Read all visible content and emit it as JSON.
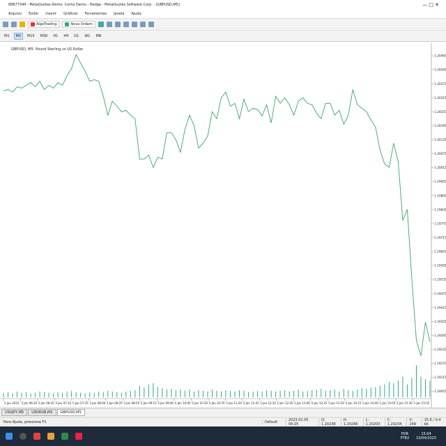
{
  "window": {
    "title": "68677344 - MetaQuotes-Demo: Conta Demo - Hedge - MetaQuotes Software Corp. - [GBPUSD,M5]"
  },
  "menu": [
    "Arquivo",
    "Exibir",
    "Inserir",
    "Gráficos",
    "Ferramentas",
    "Janela",
    "Ajuda"
  ],
  "toolbar": {
    "algotrading": "AlgoTrading",
    "new_order": "Nova Ordem"
  },
  "timeframes": [
    "M1",
    "M5",
    "M15",
    "M30",
    "H1",
    "H4",
    "D1",
    "W1",
    "MN"
  ],
  "chart_data": {
    "type": "line",
    "title": "GBPUSD, M5:  Pound Sterling vs US Dollar",
    "color": "#3aa66a",
    "x_labels": [
      "5 Jan 2023",
      "5 Jan 06:20",
      "5 Jan 06:45",
      "5 Jan 07:10",
      "5 Jan 07:35",
      "5 Jan 08:00",
      "5 Jan 08:25",
      "5 Jan 08:50",
      "5 Jan 09:15",
      "5 Jan 09:40",
      "5 Jan 10:05",
      "5 Jan 10:30",
      "5 Jan 10:55",
      "5 Jan 11:20",
      "5 Jan 11:45",
      "5 Jan 12:10",
      "5 Jan 12:35",
      "5 Jan 13:00",
      "5 Jan 13:25",
      "5 Jan 13:50",
      "5 Jan 14:15",
      "5 Jan 14:40",
      "5 Jan 15:05",
      "5 Jan 15:30",
      "5 Jan 15:55"
    ],
    "values": [
      1.20345,
      1.2035,
      1.20339,
      1.20362,
      1.20356,
      1.20368,
      1.2038,
      1.20362,
      1.20386,
      1.2035,
      1.20368,
      1.20356,
      1.2038,
      1.20368,
      1.2041,
      1.2044,
      1.205,
      1.20464,
      1.20428,
      1.20386,
      1.20392,
      1.20386,
      1.20321,
      1.2024,
      1.203,
      1.20279,
      1.20255,
      1.20261,
      1.2024,
      1.20225,
      1.20052,
      1.20052,
      1.20069,
      1.20016,
      1.2006,
      1.20052,
      1.20165,
      1.20165,
      1.20135,
      1.20081,
      1.2018,
      1.2024,
      1.20195,
      1.20099,
      1.2012,
      1.2015,
      1.20255,
      1.20225,
      1.20315,
      1.20339,
      1.20279,
      1.20291,
      1.20225,
      1.20309,
      1.20255,
      1.2027,
      1.20264,
      1.20237,
      1.20285,
      1.20207,
      1.20321,
      1.20291,
      1.20315,
      1.20285,
      1.2024,
      1.203,
      1.20315,
      1.20291,
      1.20285,
      1.20249,
      1.20225,
      1.20291,
      1.20291,
      1.2024,
      1.20261,
      1.20201,
      1.2024,
      1.2035,
      1.20285,
      1.2027,
      1.20255,
      1.20219,
      1.20189,
      1.2009,
      1.20031,
      1.20016,
      1.2012,
      1.2004,
      1.19788,
      1.19836,
      1.19537,
      1.19274,
      1.19208,
      1.19352,
      1.19268
    ],
    "volumes": [
      70,
      80,
      60,
      90,
      70,
      80,
      60,
      70,
      90,
      80,
      70,
      60,
      80,
      70,
      90,
      100,
      80,
      70,
      60,
      80,
      70,
      90,
      80,
      100,
      90,
      80,
      70,
      90,
      100,
      110,
      180,
      150,
      200,
      220,
      160,
      140,
      120,
      130,
      110,
      120,
      100,
      120,
      90,
      110,
      100,
      90,
      120,
      100,
      90,
      110,
      100,
      90,
      110,
      100,
      80,
      90,
      100,
      90,
      110,
      100,
      90,
      100,
      110,
      90,
      100,
      120,
      90,
      100,
      110,
      120,
      130,
      100,
      110,
      120,
      90,
      130,
      110,
      100,
      120,
      140,
      130,
      150,
      160,
      180,
      200,
      240,
      220,
      260,
      320,
      200,
      300,
      500,
      320,
      280,
      260
    ],
    "volume_color": "#2fa58c",
    "volume_lim": [
      0,
      600
    ],
    "ylim": [
      1.1903,
      1.20525
    ],
    "yticks": [
      1.20495,
      1.20435,
      1.20375,
      1.20315,
      1.20255,
      1.20195,
      1.20135,
      1.20075,
      1.20015,
      1.19955,
      1.19895,
      1.19835,
      1.19775,
      1.19715,
      1.19655,
      1.19595,
      1.19535,
      1.19475,
      1.19415,
      1.19355,
      1.19295,
      1.19235,
      1.19175,
      1.19115,
      1.19055
    ]
  },
  "tabs": [
    "USDJPY,M5",
    "USDRUB,M5",
    "GBPUSD,M5"
  ],
  "status": {
    "help": "Para Ajuda, pressione F1",
    "profile": "Default",
    "time": "2023.01.05 09:25",
    "open": "O: 1.20238",
    "high": "H: 1.20266",
    "low": "L: 1.20203",
    "close": "C: 1.20234",
    "volume": "V: 249",
    "traffic": "15.6 / 0.4 kb"
  },
  "taskbar": {
    "language": "POR",
    "layout": "PTB2",
    "clock": "15:04",
    "date": "10/04/2023"
  }
}
